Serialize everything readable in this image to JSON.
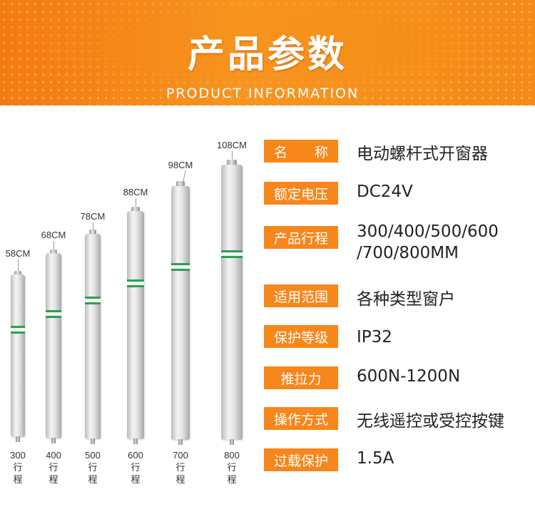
{
  "header": {
    "title": "产品参数",
    "subtitle": "PRODUCT INFORMATION"
  },
  "products": [
    {
      "length": "58CM",
      "stroke_value": "300",
      "stroke_unit": "行程"
    },
    {
      "length": "68CM",
      "stroke_value": "400",
      "stroke_unit": "行程"
    },
    {
      "length": "78CM",
      "stroke_value": "500",
      "stroke_unit": "行程"
    },
    {
      "length": "88CM",
      "stroke_value": "600",
      "stroke_unit": "行程"
    },
    {
      "length": "98CM",
      "stroke_value": "700",
      "stroke_unit": "行程"
    },
    {
      "length": "108CM",
      "stroke_value": "800",
      "stroke_unit": "行程"
    }
  ],
  "specs": [
    {
      "label_a": "名",
      "label_b": "称",
      "value": "电动螺杆式开窗器"
    },
    {
      "label": "额定电压",
      "value": "DC24V"
    },
    {
      "label": "产品行程",
      "value_line1": "300/400/500/600",
      "value_line2": "/700/800MM"
    },
    {
      "label": "适用范围",
      "value": "各种类型窗户"
    },
    {
      "label": "保护等级",
      "value": "IP32"
    },
    {
      "label": "推拉力",
      "value": "600N-1200N"
    },
    {
      "label": "操作方式",
      "value": "无线遥控或受控按键"
    },
    {
      "label": "过载保护",
      "value": "1.5A"
    }
  ],
  "colors": {
    "accent": "#f7861b",
    "band_green": "#2f9e4f"
  }
}
